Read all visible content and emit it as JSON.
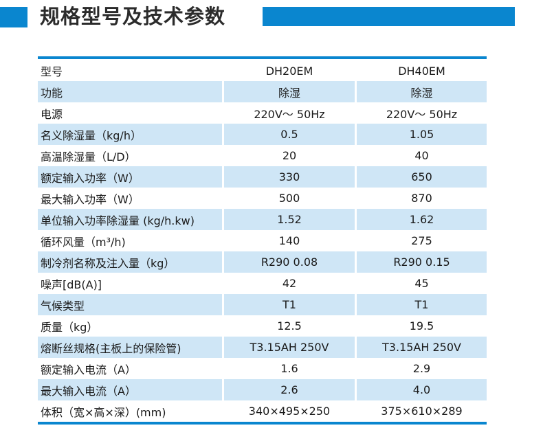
{
  "header": {
    "title": "规格型号及技术参数",
    "accent_color": "#0a86cf"
  },
  "table": {
    "shade_color": "#cfe6f6",
    "rows": [
      {
        "label": "型号",
        "v1": "DH20EM",
        "v2": "DH40EM"
      },
      {
        "label": "功能",
        "v1": "除湿",
        "v2": "除湿"
      },
      {
        "label": "电源",
        "v1": "220V～ 50Hz",
        "v2": "220V～ 50Hz"
      },
      {
        "label": "名义除湿量（kg/h）",
        "v1": "0.5",
        "v2": "1.05"
      },
      {
        "label": "高温除湿量（L/D）",
        "v1": "20",
        "v2": "40"
      },
      {
        "label": "额定输入功率（W）",
        "v1": "330",
        "v2": "650"
      },
      {
        "label": "最大输入功率（W）",
        "v1": "500",
        "v2": "870"
      },
      {
        "label": "单位输入功率除湿量 (kg/h.kw)",
        "v1": "1.52",
        "v2": "1.62"
      },
      {
        "label": "循环风量（m³/h)",
        "v1": "140",
        "v2": "275"
      },
      {
        "label": "制冷剂名称及注入量（kg）",
        "v1": "R290  0.08",
        "v2": "R290  0.15"
      },
      {
        "label": "噪声[dB(A)]",
        "v1": "42",
        "v2": "45"
      },
      {
        "label": "气候类型",
        "v1": "T1",
        "v2": "T1"
      },
      {
        "label": "质量（kg）",
        "v1": "12.5",
        "v2": "19.5"
      },
      {
        "label": "熔断丝规格(主板上的保险管)",
        "v1": "T3.15AH 250V",
        "v2": "T3.15AH 250V"
      },
      {
        "label": "额定输入电流（A）",
        "v1": "1.6",
        "v2": "2.9"
      },
      {
        "label": "最大输入电流（A）",
        "v1": "2.6",
        "v2": "4.0"
      },
      {
        "label": "体积（宽×高×深）(mm)",
        "v1": "340×495×250",
        "v2": "375×610×289"
      }
    ]
  }
}
